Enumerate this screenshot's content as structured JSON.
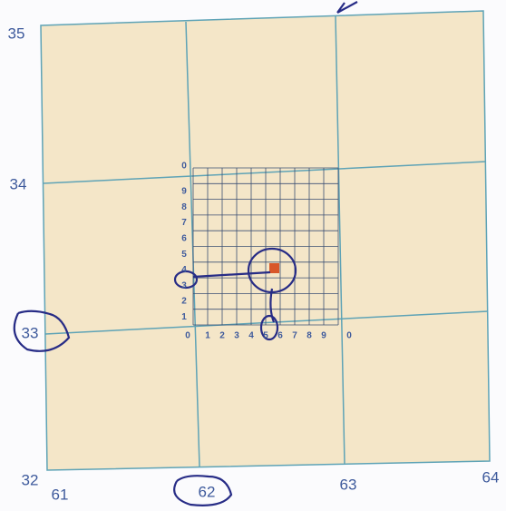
{
  "grid": {
    "northings": [
      "35",
      "34",
      "33",
      "32"
    ],
    "eastings": [
      "61",
      "62",
      "63",
      "64"
    ],
    "inner_x_labels": [
      "0",
      "1",
      "2",
      "3",
      "4",
      "5",
      "6",
      "7",
      "8",
      "9",
      "0"
    ],
    "inner_y_labels": [
      "1",
      "2",
      "3",
      "4",
      "5",
      "6",
      "7",
      "8",
      "9",
      "0"
    ]
  }
}
